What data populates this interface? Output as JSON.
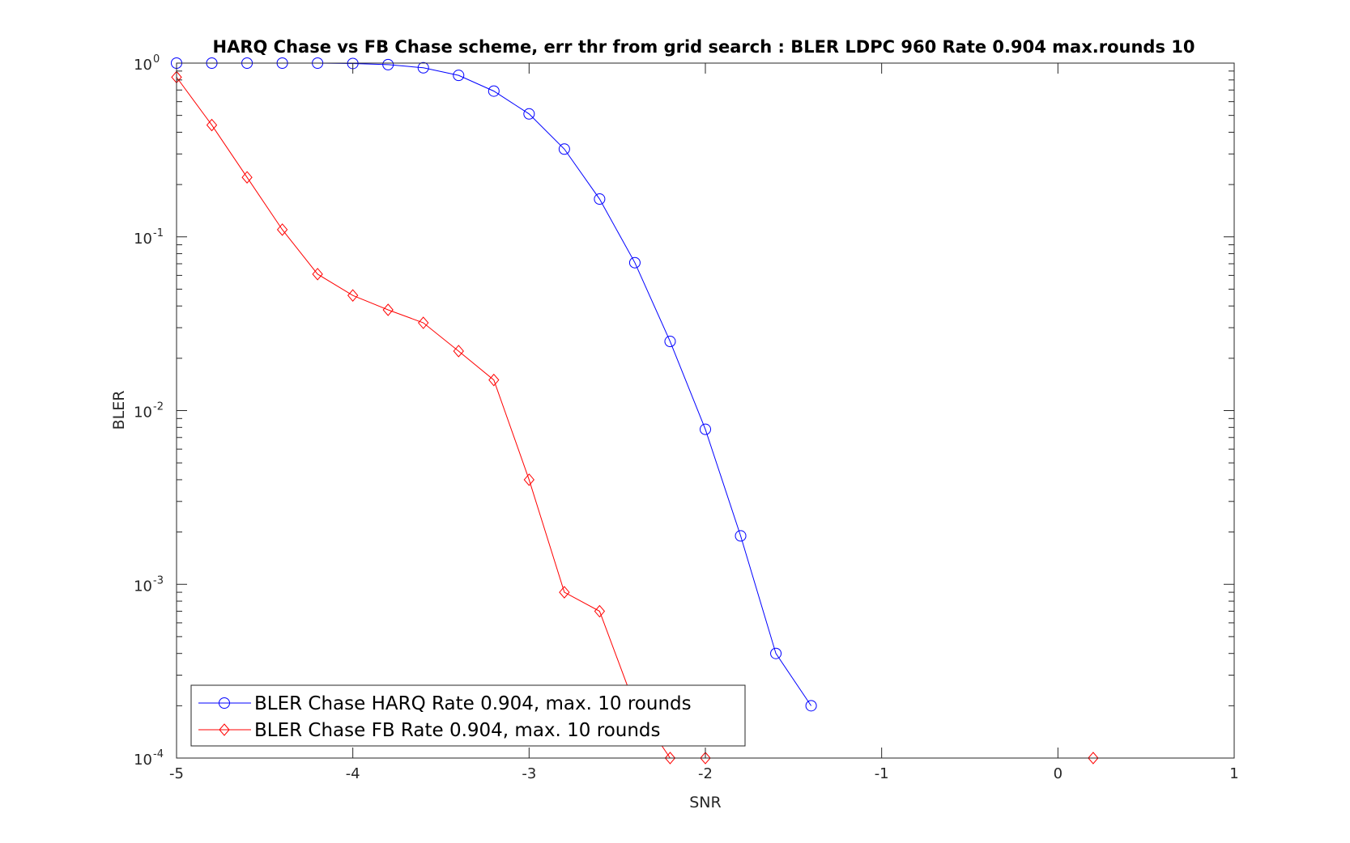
{
  "chart_data": {
    "type": "line",
    "title": "HARQ Chase vs FB Chase scheme, err thr from grid search : BLER LDPC 960 Rate 0.904 max.rounds 10",
    "xlabel": "SNR",
    "ylabel": "BLER",
    "xlim": [
      -5,
      1
    ],
    "ylim": [
      0.0001,
      1
    ],
    "yscale": "log",
    "x_ticks": [
      "-5",
      "-4",
      "-3",
      "-2",
      "-1",
      "0",
      "1"
    ],
    "y_ticks": [
      {
        "base": "10",
        "exp": "0"
      },
      {
        "base": "10",
        "exp": "-1"
      },
      {
        "base": "10",
        "exp": "-2"
      },
      {
        "base": "10",
        "exp": "-3"
      },
      {
        "base": "10",
        "exp": "-4"
      }
    ],
    "grid": false,
    "legend_location": "bottom-left",
    "series": [
      {
        "name": "BLER Chase HARQ Rate 0.904, max. 10 rounds",
        "color": "#0000ff",
        "marker": "circle",
        "x": [
          -5.0,
          -4.8,
          -4.6,
          -4.4,
          -4.2,
          -4.0,
          -3.8,
          -3.6,
          -3.4,
          -3.2,
          -3.0,
          -2.8,
          -2.6,
          -2.4,
          -2.2,
          -2.0,
          -1.8,
          -1.6,
          -1.4
        ],
        "y": [
          1.0,
          1.0,
          1.0,
          1.0,
          1.0,
          0.995,
          0.98,
          0.94,
          0.85,
          0.69,
          0.51,
          0.32,
          0.165,
          0.071,
          0.025,
          0.0078,
          0.0019,
          0.0004,
          0.0002
        ]
      },
      {
        "name": "BLER Chase FB Rate 0.904, max. 10 rounds",
        "color": "#ff0000",
        "marker": "diamond",
        "x": [
          -5.0,
          -4.8,
          -4.6,
          -4.4,
          -4.2,
          -4.0,
          -3.8,
          -3.6,
          -3.4,
          -3.2,
          -3.0,
          -2.8,
          -2.6,
          -2.4,
          -2.2,
          -2.0,
          0.2
        ],
        "y": [
          0.83,
          0.44,
          0.22,
          0.11,
          0.061,
          0.046,
          0.038,
          0.032,
          0.022,
          0.015,
          0.004,
          0.0009,
          0.0007,
          0.0002,
          0.0001,
          0.0001,
          0.0001
        ]
      }
    ]
  }
}
